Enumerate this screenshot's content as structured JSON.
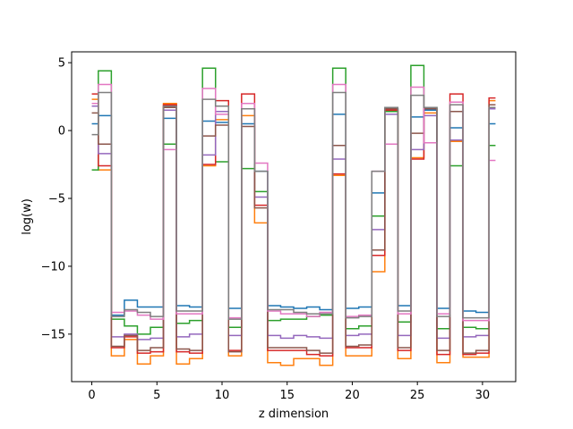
{
  "chart_data": {
    "type": "line",
    "drawstyle": "steps-mid",
    "title": "",
    "xlabel": "z dimension",
    "ylabel": "log(w)",
    "xlim": [
      -1.55,
      32.55
    ],
    "ylim": [
      -18.5,
      5.8
    ],
    "x_ticks": [
      0,
      5,
      10,
      15,
      20,
      25,
      30
    ],
    "y_ticks": [
      5,
      0,
      -5,
      -10,
      -15
    ],
    "grid": false,
    "legend": "none",
    "x": [
      0,
      1,
      2,
      3,
      4,
      5,
      6,
      7,
      8,
      9,
      10,
      11,
      12,
      13,
      14,
      15,
      16,
      17,
      18,
      19,
      20,
      21,
      22,
      23,
      24,
      25,
      26,
      27,
      28,
      29,
      30,
      31
    ],
    "series": [
      {
        "color": "#1f77b4",
        "values": [
          0.5,
          1.1,
          -13.6,
          -12.5,
          -13.0,
          -13.0,
          0.9,
          -12.9,
          -13.0,
          0.7,
          0.6,
          -13.1,
          0.5,
          -3.0,
          -12.9,
          -13.0,
          -13.1,
          -13.0,
          -13.2,
          1.2,
          -13.1,
          -13.0,
          -4.6,
          1.6,
          -12.9,
          1.0,
          1.5,
          -13.1,
          0.2,
          -13.3,
          -13.4,
          0.5
        ]
      },
      {
        "color": "#ff7f0e",
        "values": [
          2.3,
          -2.9,
          -16.6,
          -15.4,
          -17.2,
          -16.6,
          2.0,
          -17.2,
          -16.8,
          -2.6,
          0.8,
          -16.6,
          1.1,
          -6.8,
          -17.1,
          -17.3,
          -16.8,
          -16.8,
          -17.3,
          -3.3,
          -16.6,
          -16.6,
          -10.4,
          1.5,
          -16.8,
          -2.0,
          1.3,
          -17.1,
          -0.8,
          -16.7,
          -16.7,
          2.2
        ]
      },
      {
        "color": "#2ca02c",
        "values": [
          -2.9,
          4.4,
          -13.9,
          -14.4,
          -15.0,
          -14.5,
          -1.0,
          -14.2,
          -14.0,
          4.6,
          -2.3,
          -14.5,
          -2.8,
          -4.5,
          -14.0,
          -13.9,
          -13.9,
          -13.7,
          -13.6,
          4.6,
          -14.6,
          -14.4,
          -6.3,
          1.4,
          -14.1,
          4.8,
          1.7,
          -14.6,
          -2.6,
          -14.5,
          -14.6,
          -1.1
        ]
      },
      {
        "color": "#d62728",
        "values": [
          2.7,
          -2.6,
          -16.0,
          -15.2,
          -16.4,
          -16.3,
          1.9,
          -16.3,
          -16.4,
          -2.5,
          2.2,
          -16.2,
          2.7,
          -5.5,
          -16.2,
          -16.2,
          -16.2,
          -16.5,
          -16.6,
          -3.2,
          -16.0,
          -16.0,
          -9.2,
          1.5,
          -16.2,
          -2.1,
          1.6,
          -16.5,
          2.7,
          -16.5,
          -16.4,
          2.4
        ]
      },
      {
        "color": "#9467bd",
        "values": [
          1.8,
          -1.7,
          -15.2,
          -15.0,
          -15.4,
          -15.3,
          1.5,
          -15.2,
          -15.0,
          -1.8,
          1.4,
          -15.1,
          1.6,
          -4.9,
          -15.1,
          -15.3,
          -15.1,
          -15.2,
          -15.3,
          -2.1,
          -15.1,
          -15.0,
          -7.3,
          1.2,
          -15.1,
          -1.4,
          1.1,
          -15.3,
          -0.7,
          -15.2,
          -15.1,
          1.6
        ]
      },
      {
        "color": "#8c564b",
        "values": [
          1.3,
          -1.0,
          -15.9,
          -15.1,
          -16.2,
          -16.0,
          1.7,
          -16.1,
          -16.2,
          -0.4,
          0.4,
          -16.3,
          0.3,
          -5.7,
          -16.0,
          -16.0,
          -16.0,
          -16.2,
          -16.4,
          -1.1,
          -15.9,
          -15.8,
          -8.8,
          1.6,
          -16.0,
          -0.2,
          1.6,
          -16.2,
          1.4,
          -16.4,
          -16.2,
          1.9
        ]
      },
      {
        "color": "#e377c2",
        "values": [
          2.0,
          3.4,
          -13.4,
          -13.3,
          -13.6,
          -13.9,
          -1.4,
          -13.5,
          -13.5,
          3.1,
          1.2,
          -13.8,
          2.0,
          -2.4,
          -13.3,
          -13.5,
          -13.5,
          -13.7,
          -13.4,
          3.4,
          -13.7,
          -13.6,
          -3.0,
          -1.0,
          -13.5,
          3.2,
          -0.9,
          -13.5,
          2.1,
          -14.0,
          -14.0,
          -2.2
        ]
      },
      {
        "color": "#7f7f7f",
        "values": [
          -0.3,
          2.8,
          -13.7,
          -13.2,
          -13.4,
          -13.7,
          1.8,
          -13.3,
          -13.3,
          2.3,
          1.8,
          -13.9,
          1.6,
          -3.0,
          -13.2,
          -13.2,
          -13.4,
          -13.5,
          -13.5,
          2.8,
          -13.8,
          -13.7,
          -3.0,
          1.7,
          -13.3,
          2.6,
          1.7,
          -13.7,
          1.9,
          -13.8,
          -13.8,
          1.7
        ]
      }
    ]
  }
}
